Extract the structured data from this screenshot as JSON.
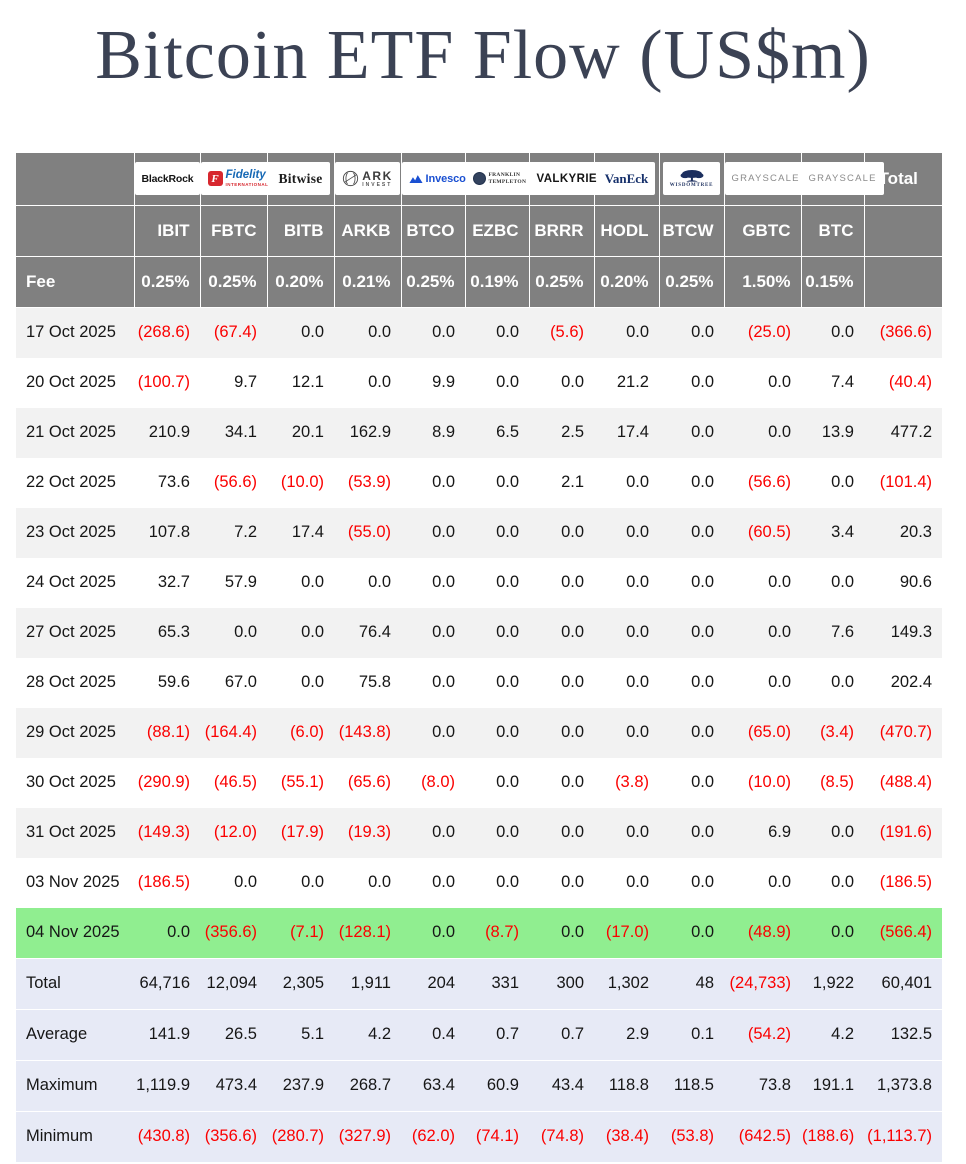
{
  "page": {
    "title": "Bitcoin ETF Flow (US$m)"
  },
  "colors": {
    "negative": "#fb0000",
    "highlight_row": "#90ee90",
    "header_bg": "#808080",
    "stripe": "#f2f2f2",
    "summary_bg": "#e7eaf6",
    "title": "#3b4254"
  },
  "logos": {
    "blackrock": "BlackRock",
    "fidelity_badge": "F",
    "fidelity_name": "Fidelity",
    "fidelity_sub": "INTERNATIONAL",
    "bitwise": "Bitwise",
    "ark_name": "ARK",
    "ark_sub": "INVEST",
    "invesco": "Invesco",
    "franklin_line1": "FRANKLIN",
    "franklin_line2": "TEMPLETON",
    "valkyrie": "VALKYRIE",
    "vaneck": "VanEck",
    "wisdomtree": "WISDOMTREE",
    "grayscale_gbtc": "GRAYSCALE",
    "grayscale_btc": "GRAYSCALE"
  },
  "table": {
    "fee_label": "Fee",
    "total_label": "Total",
    "columns": [
      {
        "provider": "BlackRock",
        "ticker": "IBIT",
        "fee": "0.25%"
      },
      {
        "provider": "Fidelity International",
        "ticker": "FBTC",
        "fee": "0.25%"
      },
      {
        "provider": "Bitwise",
        "ticker": "BITB",
        "fee": "0.20%"
      },
      {
        "provider": "ARK Invest",
        "ticker": "ARKB",
        "fee": "0.21%"
      },
      {
        "provider": "Invesco",
        "ticker": "BTCO",
        "fee": "0.25%"
      },
      {
        "provider": "Franklin Templeton",
        "ticker": "EZBC",
        "fee": "0.19%"
      },
      {
        "provider": "Valkyrie",
        "ticker": "BRRR",
        "fee": "0.25%"
      },
      {
        "provider": "VanEck",
        "ticker": "HODL",
        "fee": "0.20%"
      },
      {
        "provider": "WisdomTree",
        "ticker": "BTCW",
        "fee": "0.25%"
      },
      {
        "provider": "Grayscale",
        "ticker": "GBTC",
        "fee": "1.50%"
      },
      {
        "provider": "Grayscale",
        "ticker": "BTC",
        "fee": "0.15%"
      }
    ],
    "rows": [
      {
        "date": "17 Oct 2025",
        "values": [
          "(268.6)",
          "(67.4)",
          "0.0",
          "0.0",
          "0.0",
          "0.0",
          "(5.6)",
          "0.0",
          "0.0",
          "(25.0)",
          "0.0"
        ],
        "total": "(366.6)"
      },
      {
        "date": "20 Oct 2025",
        "values": [
          "(100.7)",
          "9.7",
          "12.1",
          "0.0",
          "9.9",
          "0.0",
          "0.0",
          "21.2",
          "0.0",
          "0.0",
          "7.4"
        ],
        "total": "(40.4)"
      },
      {
        "date": "21 Oct 2025",
        "values": [
          "210.9",
          "34.1",
          "20.1",
          "162.9",
          "8.9",
          "6.5",
          "2.5",
          "17.4",
          "0.0",
          "0.0",
          "13.9"
        ],
        "total": "477.2"
      },
      {
        "date": "22 Oct 2025",
        "values": [
          "73.6",
          "(56.6)",
          "(10.0)",
          "(53.9)",
          "0.0",
          "0.0",
          "2.1",
          "0.0",
          "0.0",
          "(56.6)",
          "0.0"
        ],
        "total": "(101.4)"
      },
      {
        "date": "23 Oct 2025",
        "values": [
          "107.8",
          "7.2",
          "17.4",
          "(55.0)",
          "0.0",
          "0.0",
          "0.0",
          "0.0",
          "0.0",
          "(60.5)",
          "3.4"
        ],
        "total": "20.3"
      },
      {
        "date": "24 Oct 2025",
        "values": [
          "32.7",
          "57.9",
          "0.0",
          "0.0",
          "0.0",
          "0.0",
          "0.0",
          "0.0",
          "0.0",
          "0.0",
          "0.0"
        ],
        "total": "90.6"
      },
      {
        "date": "27 Oct 2025",
        "values": [
          "65.3",
          "0.0",
          "0.0",
          "76.4",
          "0.0",
          "0.0",
          "0.0",
          "0.0",
          "0.0",
          "0.0",
          "7.6"
        ],
        "total": "149.3"
      },
      {
        "date": "28 Oct 2025",
        "values": [
          "59.6",
          "67.0",
          "0.0",
          "75.8",
          "0.0",
          "0.0",
          "0.0",
          "0.0",
          "0.0",
          "0.0",
          "0.0"
        ],
        "total": "202.4"
      },
      {
        "date": "29 Oct 2025",
        "values": [
          "(88.1)",
          "(164.4)",
          "(6.0)",
          "(143.8)",
          "0.0",
          "0.0",
          "0.0",
          "0.0",
          "0.0",
          "(65.0)",
          "(3.4)"
        ],
        "total": "(470.7)"
      },
      {
        "date": "30 Oct 2025",
        "values": [
          "(290.9)",
          "(46.5)",
          "(55.1)",
          "(65.6)",
          "(8.0)",
          "0.0",
          "0.0",
          "(3.8)",
          "0.0",
          "(10.0)",
          "(8.5)"
        ],
        "total": "(488.4)"
      },
      {
        "date": "31 Oct 2025",
        "values": [
          "(149.3)",
          "(12.0)",
          "(17.9)",
          "(19.3)",
          "0.0",
          "0.0",
          "0.0",
          "0.0",
          "0.0",
          "6.9",
          "0.0"
        ],
        "total": "(191.6)"
      },
      {
        "date": "03 Nov 2025",
        "values": [
          "(186.5)",
          "0.0",
          "0.0",
          "0.0",
          "0.0",
          "0.0",
          "0.0",
          "0.0",
          "0.0",
          "0.0",
          "0.0"
        ],
        "total": "(186.5)"
      },
      {
        "date": "04 Nov 2025",
        "highlight": true,
        "values": [
          "0.0",
          "(356.6)",
          "(7.1)",
          "(128.1)",
          "0.0",
          "(8.7)",
          "0.0",
          "(17.0)",
          "0.0",
          "(48.9)",
          "0.0"
        ],
        "total": "(566.4)"
      }
    ],
    "summary": [
      {
        "label": "Total",
        "values": [
          "64,716",
          "12,094",
          "2,305",
          "1,911",
          "204",
          "331",
          "300",
          "1,302",
          "48",
          "(24,733)",
          "1,922"
        ],
        "total": "60,401"
      },
      {
        "label": "Average",
        "values": [
          "141.9",
          "26.5",
          "5.1",
          "4.2",
          "0.4",
          "0.7",
          "0.7",
          "2.9",
          "0.1",
          "(54.2)",
          "4.2"
        ],
        "total": "132.5"
      },
      {
        "label": "Maximum",
        "values": [
          "1,119.9",
          "473.4",
          "237.9",
          "268.7",
          "63.4",
          "60.9",
          "43.4",
          "118.8",
          "118.5",
          "73.8",
          "191.1"
        ],
        "total": "1,373.8"
      },
      {
        "label": "Minimum",
        "values": [
          "(430.8)",
          "(356.6)",
          "(280.7)",
          "(327.9)",
          "(62.0)",
          "(74.1)",
          "(74.8)",
          "(38.4)",
          "(53.8)",
          "(642.5)",
          "(188.6)"
        ],
        "total": "(1,113.7)"
      }
    ]
  },
  "chart_data": {
    "type": "table",
    "title": "Bitcoin ETF Flow (US$m)",
    "columns": [
      "IBIT",
      "FBTC",
      "BITB",
      "ARKB",
      "BTCO",
      "EZBC",
      "BRRR",
      "HODL",
      "BTCW",
      "GBTC",
      "BTC",
      "Total"
    ],
    "providers": [
      "BlackRock",
      "Fidelity International",
      "Bitwise",
      "ARK Invest",
      "Invesco",
      "Franklin Templeton",
      "Valkyrie",
      "VanEck",
      "WisdomTree",
      "Grayscale",
      "Grayscale"
    ],
    "fees_percent": [
      0.25,
      0.25,
      0.2,
      0.21,
      0.25,
      0.19,
      0.25,
      0.2,
      0.25,
      1.5,
      0.15
    ],
    "rows": [
      {
        "date": "17 Oct 2025",
        "values": [
          -268.6,
          -67.4,
          0,
          0,
          0,
          0,
          -5.6,
          0,
          0,
          -25.0,
          0,
          -366.6
        ]
      },
      {
        "date": "20 Oct 2025",
        "values": [
          -100.7,
          9.7,
          12.1,
          0,
          9.9,
          0,
          0,
          21.2,
          0,
          0,
          7.4,
          -40.4
        ]
      },
      {
        "date": "21 Oct 2025",
        "values": [
          210.9,
          34.1,
          20.1,
          162.9,
          8.9,
          6.5,
          2.5,
          17.4,
          0,
          0,
          13.9,
          477.2
        ]
      },
      {
        "date": "22 Oct 2025",
        "values": [
          73.6,
          -56.6,
          -10.0,
          -53.9,
          0,
          0,
          2.1,
          0,
          0,
          -56.6,
          0,
          -101.4
        ]
      },
      {
        "date": "23 Oct 2025",
        "values": [
          107.8,
          7.2,
          17.4,
          -55.0,
          0,
          0,
          0,
          0,
          0,
          -60.5,
          3.4,
          20.3
        ]
      },
      {
        "date": "24 Oct 2025",
        "values": [
          32.7,
          57.9,
          0,
          0,
          0,
          0,
          0,
          0,
          0,
          0,
          0,
          90.6
        ]
      },
      {
        "date": "27 Oct 2025",
        "values": [
          65.3,
          0,
          0,
          76.4,
          0,
          0,
          0,
          0,
          0,
          0,
          7.6,
          149.3
        ]
      },
      {
        "date": "28 Oct 2025",
        "values": [
          59.6,
          67.0,
          0,
          75.8,
          0,
          0,
          0,
          0,
          0,
          0,
          0,
          202.4
        ]
      },
      {
        "date": "29 Oct 2025",
        "values": [
          -88.1,
          -164.4,
          -6.0,
          -143.8,
          0,
          0,
          0,
          0,
          0,
          -65.0,
          -3.4,
          -470.7
        ]
      },
      {
        "date": "30 Oct 2025",
        "values": [
          -290.9,
          -46.5,
          -55.1,
          -65.6,
          -8.0,
          0,
          0,
          -3.8,
          0,
          -10.0,
          -8.5,
          -488.4
        ]
      },
      {
        "date": "31 Oct 2025",
        "values": [
          -149.3,
          -12.0,
          -17.9,
          -19.3,
          0,
          0,
          0,
          0,
          0,
          6.9,
          0,
          -191.6
        ]
      },
      {
        "date": "03 Nov 2025",
        "values": [
          -186.5,
          0,
          0,
          0,
          0,
          0,
          0,
          0,
          0,
          0,
          0,
          -186.5
        ]
      },
      {
        "date": "04 Nov 2025",
        "values": [
          0,
          -356.6,
          -7.1,
          -128.1,
          0,
          -8.7,
          0,
          -17.0,
          0,
          -48.9,
          0,
          -566.4
        ]
      }
    ],
    "summary": [
      {
        "label": "Total",
        "values": [
          64716,
          12094,
          2305,
          1911,
          204,
          331,
          300,
          1302,
          48,
          -24733,
          1922,
          60401
        ]
      },
      {
        "label": "Average",
        "values": [
          141.9,
          26.5,
          5.1,
          4.2,
          0.4,
          0.7,
          0.7,
          2.9,
          0.1,
          -54.2,
          4.2,
          132.5
        ]
      },
      {
        "label": "Maximum",
        "values": [
          1119.9,
          473.4,
          237.9,
          268.7,
          63.4,
          60.9,
          43.4,
          118.8,
          118.5,
          73.8,
          191.1,
          1373.8
        ]
      },
      {
        "label": "Minimum",
        "values": [
          -430.8,
          -356.6,
          -280.7,
          -327.9,
          -62.0,
          -74.1,
          -74.8,
          -38.4,
          -53.8,
          -642.5,
          -188.6,
          -1113.7
        ]
      }
    ],
    "highlighted_row": "04 Nov 2025",
    "negative_format": "parentheses-red"
  }
}
